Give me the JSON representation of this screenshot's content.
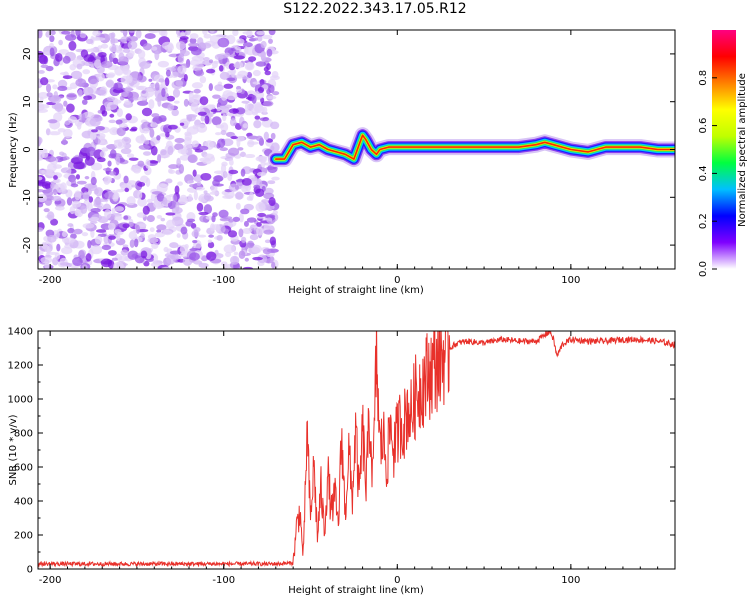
{
  "title": "S122.2022.343.17.05.R12",
  "chart_data": [
    {
      "type": "heatmap",
      "name": "spectrogram",
      "xlabel": "Height of straight line (km)",
      "ylabel": "Frequency (Hz)",
      "xlim": [
        -207,
        160
      ],
      "ylim": [
        -25,
        25
      ],
      "xticks": [
        -200,
        -100,
        0,
        100
      ],
      "yticks": [
        -20,
        -10,
        0,
        10,
        20
      ],
      "noise_region_x": [
        -207,
        -70
      ],
      "signal_track": {
        "x": [
          -70,
          -65,
          -60,
          -55,
          -50,
          -45,
          -40,
          -35,
          -30,
          -25,
          -22,
          -20,
          -18,
          -15,
          -12,
          -10,
          -5,
          0,
          10,
          20,
          40,
          60,
          70,
          80,
          85,
          90,
          95,
          100,
          110,
          120,
          130,
          140,
          150,
          160
        ],
        "y": [
          -2,
          -2,
          1,
          1.5,
          0.5,
          1,
          0,
          -0.5,
          -1,
          -2,
          1,
          3,
          2,
          0,
          -1,
          0,
          0.5,
          0.5,
          0.5,
          0.5,
          0.5,
          0.5,
          0.5,
          1,
          1.5,
          1,
          0.5,
          0,
          -0.5,
          0.5,
          0.5,
          0.5,
          0,
          0
        ]
      },
      "colorbar": {
        "label": "Normalized spectral amplitude",
        "range": [
          0.0,
          1.0
        ],
        "ticks": [
          "0.0",
          "0.2",
          "0.4",
          "0.6",
          "0.8"
        ],
        "tick_values": [
          0,
          0.2,
          0.4,
          0.6,
          0.8
        ],
        "colors": [
          "#ffffff",
          "#7f00ff",
          "#0000ff",
          "#00c0ff",
          "#00ff40",
          "#c0ff00",
          "#ffff00",
          "#ff8000",
          "#ff0000",
          "#ff0080"
        ]
      }
    },
    {
      "type": "line",
      "name": "snr",
      "xlabel": "Height of straight line (km)",
      "ylabel": "SNR (10 * v/v)",
      "xlim": [
        -207,
        160
      ],
      "ylim": [
        0,
        1400
      ],
      "xticks": [
        -200,
        -100,
        0,
        100
      ],
      "yticks": [
        0,
        200,
        400,
        600,
        800,
        1000,
        1200,
        1400
      ],
      "color": "#e8302a",
      "series": {
        "x": [
          -207,
          -150,
          -100,
          -70,
          -60,
          -58,
          -56,
          -55,
          -54,
          -52,
          -50,
          -48,
          -46,
          -44,
          -42,
          -40,
          -38,
          -36,
          -34,
          -32,
          -30,
          -28,
          -26,
          -24,
          -22,
          -20,
          -18,
          -16,
          -14,
          -12,
          -10,
          -8,
          -6,
          -4,
          -2,
          0,
          2,
          4,
          6,
          8,
          10,
          12,
          15,
          20,
          25,
          30,
          35,
          40,
          50,
          60,
          70,
          80,
          88,
          90,
          92,
          95,
          100,
          110,
          120,
          130,
          140,
          150,
          160
        ],
        "y": [
          30,
          30,
          30,
          30,
          35,
          250,
          350,
          160,
          80,
          820,
          280,
          620,
          180,
          480,
          220,
          560,
          330,
          440,
          250,
          800,
          310,
          700,
          400,
          820,
          420,
          820,
          480,
          900,
          520,
          1270,
          700,
          780,
          600,
          850,
          700,
          800,
          870,
          850,
          950,
          900,
          1000,
          1050,
          1100,
          1180,
          1240,
          1300,
          1330,
          1340,
          1330,
          1350,
          1340,
          1340,
          1400,
          1350,
          1250,
          1320,
          1350,
          1340,
          1340,
          1350,
          1350,
          1340,
          1320
        ]
      }
    }
  ]
}
